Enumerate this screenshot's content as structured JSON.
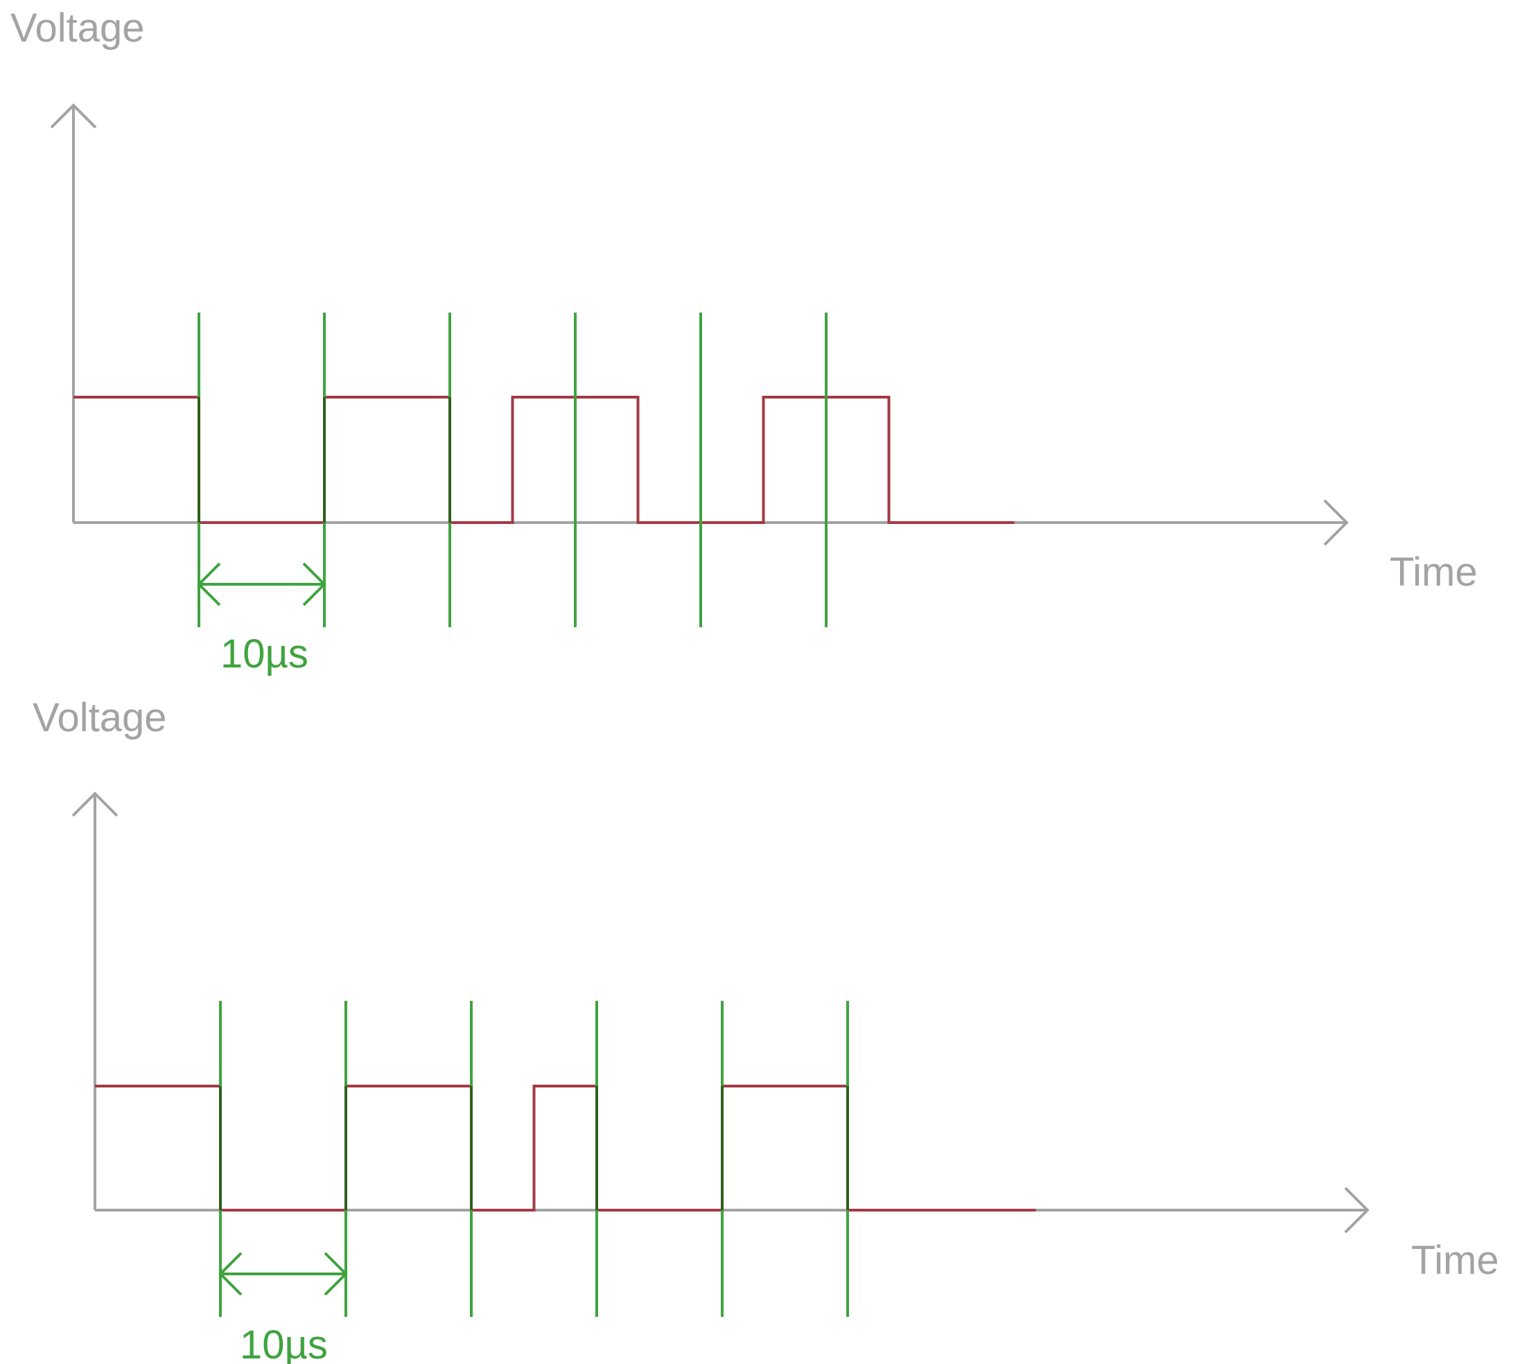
{
  "colors": {
    "axis": "#a3a3a3",
    "signal": "#a33a44",
    "clock": "#3fa33f",
    "overlap": "#2f5f1e"
  },
  "diagrams": [
    {
      "y_label": "Voltage",
      "x_label": "Time",
      "interval_label": "10µs",
      "clock_edges_units": [
        1,
        2,
        3,
        4,
        5,
        6
      ],
      "signal_levels": [
        {
          "t": 0,
          "level": 1
        },
        {
          "t": 1,
          "level": 0
        },
        {
          "t": 2,
          "level": 1
        },
        {
          "t": 3,
          "level": 0
        },
        {
          "t": 3.5,
          "level": 1
        },
        {
          "t": 4.5,
          "level": 0
        },
        {
          "t": 5.5,
          "level": 1
        },
        {
          "t": 6.5,
          "level": 0
        }
      ],
      "signal_end_units": 7.5
    },
    {
      "y_label": "Voltage",
      "x_label": "Time",
      "interval_label": "10µs",
      "clock_edges_units": [
        1,
        2,
        3,
        4,
        5,
        6
      ],
      "signal_levels": [
        {
          "t": 0,
          "level": 1
        },
        {
          "t": 1,
          "level": 0
        },
        {
          "t": 2,
          "level": 1
        },
        {
          "t": 3,
          "level": 0
        },
        {
          "t": 3.5,
          "level": 1
        },
        {
          "t": 4,
          "level": 0
        },
        {
          "t": 5,
          "level": 1
        },
        {
          "t": 6,
          "level": 0
        }
      ],
      "signal_end_units": 7.5
    }
  ]
}
